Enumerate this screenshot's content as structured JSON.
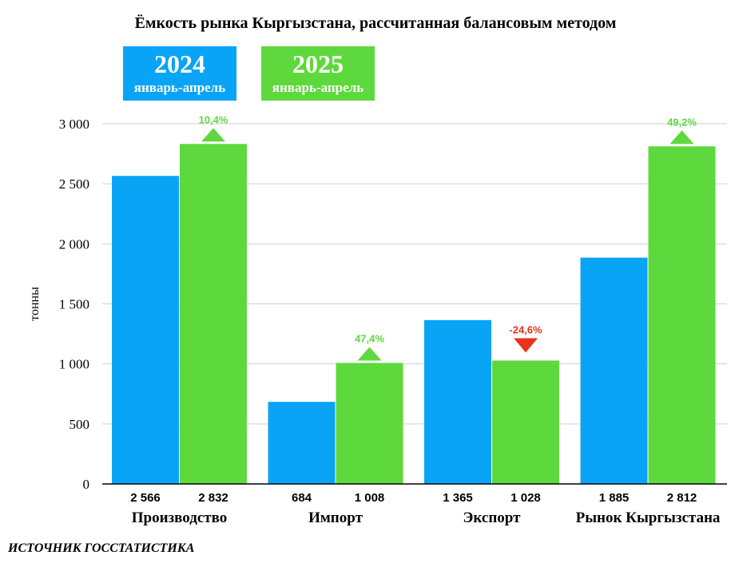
{
  "chart_data": {
    "type": "bar",
    "title": "Ёмкость рынка Кыргызстана, рассчитанная балансовым методом",
    "ylabel": "тонны",
    "xlabel": "",
    "ylim": [
      0,
      3000
    ],
    "yticks": [
      0,
      500,
      1000,
      1500,
      2000,
      2500,
      3000
    ],
    "ytick_labels": [
      "0",
      "500",
      "1 000",
      "1 500",
      "2 000",
      "2 500",
      "3 000"
    ],
    "grid": true,
    "categories": [
      "Производство",
      "Импорт",
      "Экспорт",
      "Рынок Кыргызстана"
    ],
    "series": [
      {
        "name": "2024 январь-апрель",
        "year": "2024",
        "period": "январь-апрель",
        "color": "#0aa4f6",
        "values": [
          2566,
          684,
          1365,
          1885
        ],
        "value_labels": [
          "2 566",
          "684",
          "1 365",
          "1 885"
        ]
      },
      {
        "name": "2025 январь-апрель",
        "year": "2025",
        "period": "январь-апрель",
        "color": "#5ed93d",
        "values": [
          2832,
          1008,
          1028,
          2812
        ],
        "value_labels": [
          "2 832",
          "1 008",
          "1 028",
          "2 812"
        ]
      }
    ],
    "changes": [
      {
        "label": "10,4%",
        "direction": "up",
        "color": "#5ed93d"
      },
      {
        "label": "47,4%",
        "direction": "up",
        "color": "#5ed93d"
      },
      {
        "label": "-24,6%",
        "direction": "down",
        "color": "#e8321e"
      },
      {
        "label": "49,2%",
        "direction": "up",
        "color": "#5ed93d"
      }
    ],
    "legend_placement": "top-left"
  },
  "source": "ИСТОЧНИК ГОССТАТИСТИКА"
}
